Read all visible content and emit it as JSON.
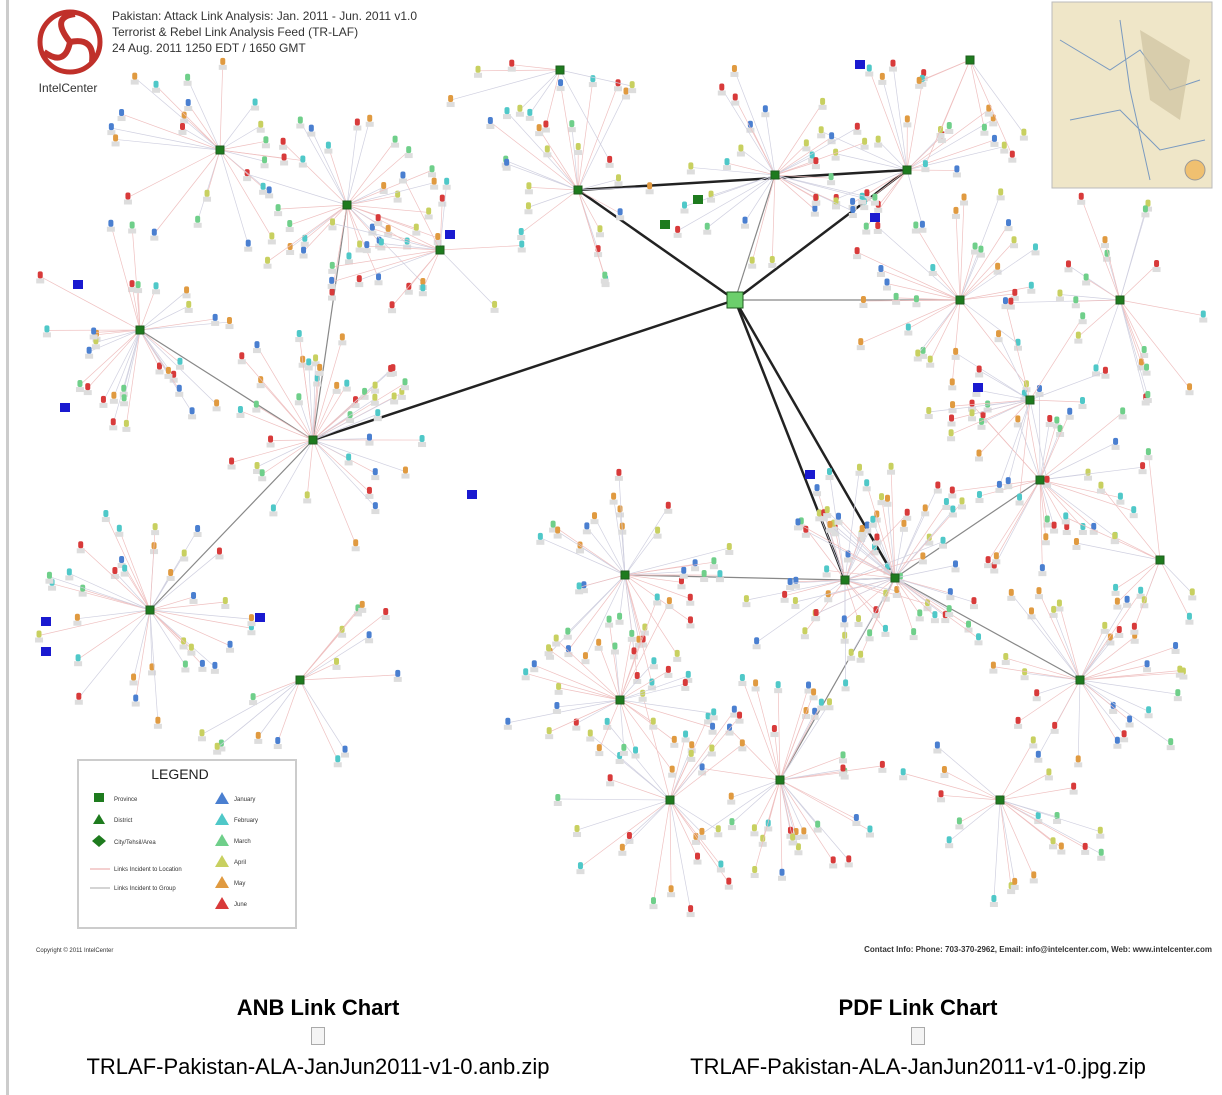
{
  "header": {
    "title": "Pakistan: Attack Link Analysis: Jan. 2011 - Jun. 2011 v1.0",
    "subtitle": "Terrorist & Rebel Link Analysis Feed (TR-LAF)",
    "date": "24 Aug. 2011 1250 EDT / 1650 GMT",
    "logo": "IntelCenter"
  },
  "legend": {
    "title": "LEGEND",
    "locations": [
      "Province",
      "District",
      "City/Tehsil/Area",
      "Links Incident to Location",
      "Links Incident to Group"
    ],
    "months": [
      "January",
      "February",
      "March",
      "April",
      "May",
      "June"
    ]
  },
  "footer": {
    "copyright": "Copyright © 2011 IntelCenter",
    "contact": "Contact Info: Phone: 703-370-2962, Email: info@intelcenter.com, Web: www.intelcenter.com"
  },
  "downloads": [
    {
      "heading": "ANB Link Chart",
      "filename": "TRLAF-Pakistan-ALA-JanJun2011-v1-0.anb.zip"
    },
    {
      "heading": "PDF Link Chart",
      "filename": "TRLAF-Pakistan-ALA-JanJun2011-v1-0.jpg.zip"
    }
  ]
}
